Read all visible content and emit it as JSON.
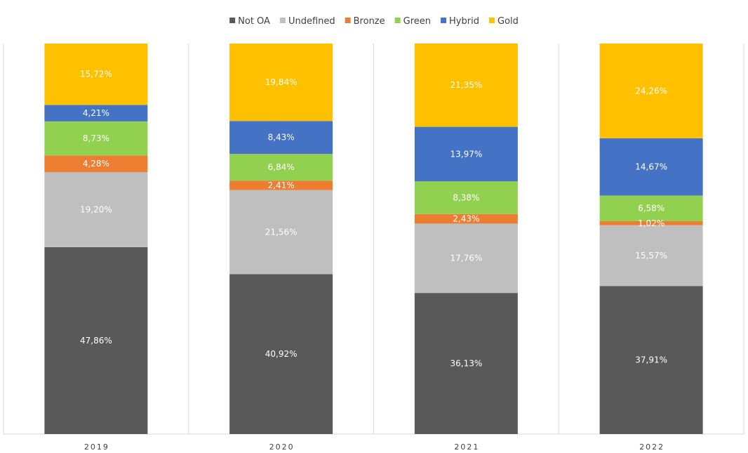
{
  "chart_data": {
    "type": "bar",
    "stacked": true,
    "percent_stacked": true,
    "categories": [
      "2019",
      "2020",
      "2021",
      "2022"
    ],
    "series": [
      {
        "name": "Not OA",
        "color": "#595959",
        "values": [
          47.86,
          40.92,
          36.13,
          37.91
        ],
        "labels": [
          "47,86%",
          "40,92%",
          "36,13%",
          "37,91%"
        ]
      },
      {
        "name": "Undefined",
        "color": "#bfbfbf",
        "values": [
          19.2,
          21.56,
          17.76,
          15.57
        ],
        "labels": [
          "19,20%",
          "21,56%",
          "17,76%",
          "15,57%"
        ]
      },
      {
        "name": "Bronze",
        "color": "#ed7d31",
        "values": [
          4.28,
          2.41,
          2.43,
          1.02
        ],
        "labels": [
          "4,28%",
          "2,41%",
          "2,43%",
          "1,02%"
        ]
      },
      {
        "name": "Green",
        "color": "#92d050",
        "values": [
          8.73,
          6.84,
          8.38,
          6.58
        ],
        "labels": [
          "8,73%",
          "6,84%",
          "8,38%",
          "6,58%"
        ]
      },
      {
        "name": "Hybrid",
        "color": "#4472c4",
        "values": [
          4.21,
          8.43,
          13.97,
          14.67
        ],
        "labels": [
          "4,21%",
          "8,43%",
          "13,97%",
          "14,67%"
        ]
      },
      {
        "name": "Gold",
        "color": "#ffc000",
        "values": [
          15.72,
          19.84,
          21.35,
          24.26
        ],
        "labels": [
          "15,72%",
          "19,84%",
          "21,35%",
          "24,26%"
        ]
      }
    ],
    "ylim": [
      0,
      100
    ],
    "title": "",
    "xlabel": "",
    "ylabel": "",
    "legend_position": "top",
    "grid": false,
    "separators": "vertical"
  }
}
